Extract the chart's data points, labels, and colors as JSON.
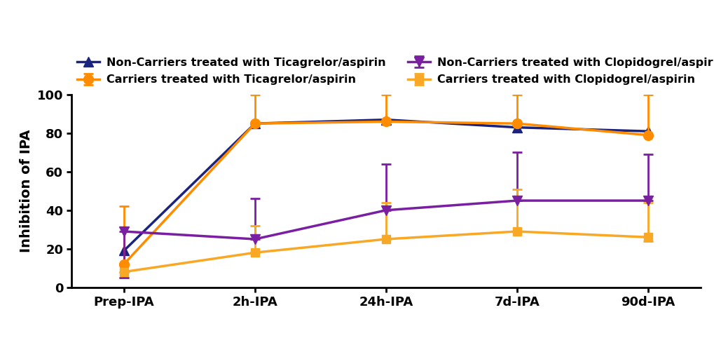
{
  "x_labels": [
    "Prep-IPA",
    "2h-IPA",
    "24h-IPA",
    "7d-IPA",
    "90d-IPA"
  ],
  "series": [
    {
      "label": "Non-Carriers treated with Ticagrelor/aspirin",
      "color": "#1a237e",
      "marker": "^",
      "markersize": 10,
      "linewidth": 2.5,
      "y": [
        19,
        85,
        87,
        83,
        81
      ],
      "yerr_lower": [
        null,
        null,
        null,
        null,
        null
      ],
      "yerr_upper": [
        null,
        null,
        null,
        null,
        null
      ]
    },
    {
      "label": "Carriers treated with Ticagrelor/aspirin",
      "color": "#ff8c00",
      "marker": "o",
      "markersize": 10,
      "linewidth": 2.5,
      "y": [
        12,
        85,
        86,
        85,
        79
      ],
      "yerr_lower": [
        5,
        85,
        86,
        85,
        79
      ],
      "yerr_upper": [
        42,
        100,
        100,
        100,
        100
      ]
    },
    {
      "label": "Non-Carriers treated with Clopidogrel/aspirin",
      "color": "#7b1fa2",
      "marker": "v",
      "markersize": 10,
      "linewidth": 2.5,
      "y": [
        29,
        25,
        40,
        45,
        45
      ],
      "yerr_lower": [
        5,
        25,
        40,
        45,
        45
      ],
      "yerr_upper": [
        29,
        46,
        64,
        70,
        69
      ]
    },
    {
      "label": "Carriers treated with Clopidogrel/aspirin",
      "color": "#f9a825",
      "marker": "s",
      "markersize": 9,
      "linewidth": 2.5,
      "y": [
        8,
        18,
        25,
        29,
        26
      ],
      "yerr_lower": [
        8,
        18,
        25,
        29,
        24
      ],
      "yerr_upper": [
        8,
        32,
        44,
        51,
        44
      ]
    }
  ],
  "ylabel": "Inhibition of IPA",
  "ylim": [
    0,
    100
  ],
  "yticks": [
    0,
    20,
    40,
    60,
    80,
    100
  ],
  "background_color": "#ffffff",
  "legend_fontsize": 11.5,
  "axis_fontsize": 14,
  "tick_fontsize": 13
}
